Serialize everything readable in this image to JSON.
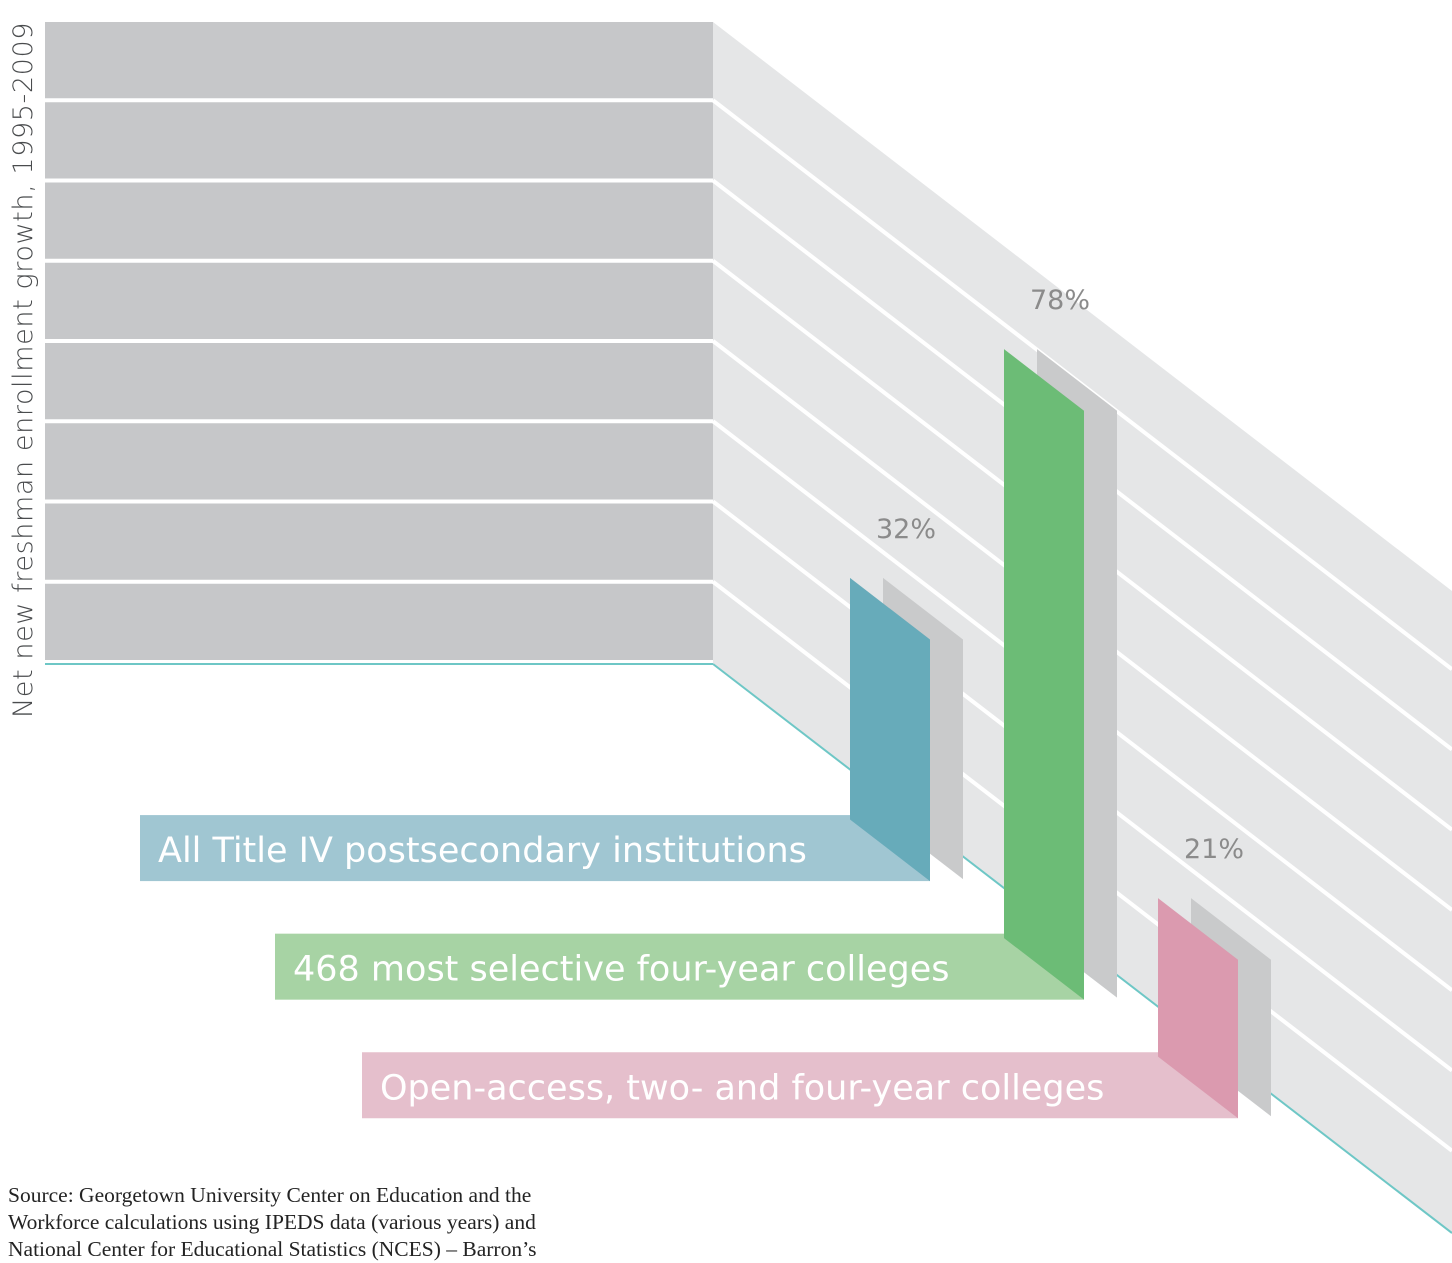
{
  "chart_data": {
    "type": "bar",
    "ylabel": "Net new freshman enrollment growth, 1995-2009",
    "categories": [
      "All Title IV postsecondary institutions",
      "468 most selective four-year colleges",
      "Open-access, two- and four-year colleges"
    ],
    "values": [
      32,
      78,
      21
    ],
    "value_labels": [
      "32%",
      "78%",
      "21%"
    ],
    "colors": [
      "#67abba",
      "#6cbc76",
      "#db9aaf"
    ],
    "label_colors": [
      "#a0c6d2",
      "#a7d3a4",
      "#e5bfcc"
    ],
    "grid": true,
    "units": "%"
  },
  "colors": {
    "back_wall": "#c6c7c9",
    "side_wall": "#e5e6e7",
    "baseline": "#6ec7c6",
    "value_label": "#8b8b8b",
    "bar_shadow": "#c9cacb"
  },
  "source_lines": [
    "Source: Georgetown University Center on Education and the",
    "Workforce calculations using IPEDS data (various years) and",
    "National Center for Educational Statistics (NCES) – Barron’s"
  ]
}
